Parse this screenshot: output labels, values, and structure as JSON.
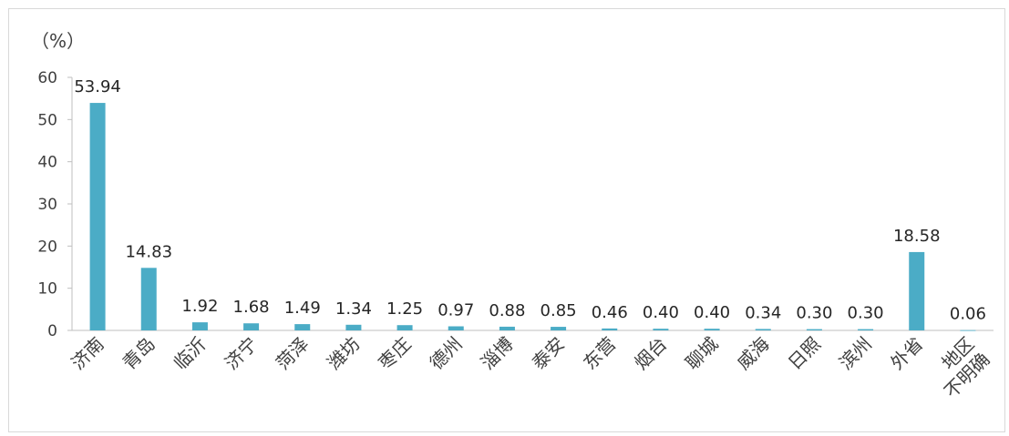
{
  "chart_data": {
    "type": "bar",
    "unit_label": "（%）",
    "categories": [
      "济南",
      "青岛",
      "临沂",
      "济宁",
      "菏泽",
      "潍坊",
      "枣庄",
      "德州",
      "淄博",
      "泰安",
      "东营",
      "烟台",
      "聊城",
      "威海",
      "日照",
      "滨州",
      "外省",
      "地区不明确"
    ],
    "values": [
      53.94,
      14.83,
      1.92,
      1.68,
      1.49,
      1.34,
      1.25,
      0.97,
      0.88,
      0.85,
      0.46,
      0.4,
      0.4,
      0.34,
      0.3,
      0.3,
      18.58,
      0.06
    ],
    "data_labels": [
      "53.94",
      "14.83",
      "1.92",
      "1.68",
      "1.49",
      "1.34",
      "1.25",
      "0.97",
      "0.88",
      "0.85",
      "0.46",
      "0.40",
      "0.40",
      "0.34",
      "0.30",
      "0.30",
      "18.58",
      "0.06"
    ],
    "yticks": [
      0,
      10,
      20,
      30,
      40,
      50,
      60
    ],
    "ylim": [
      0,
      60
    ],
    "bar_color": "#4bacc6",
    "axis_color": "#bfbfbf",
    "grid": false,
    "legend": "none",
    "title": "",
    "xlabel": "",
    "ylabel": ""
  }
}
